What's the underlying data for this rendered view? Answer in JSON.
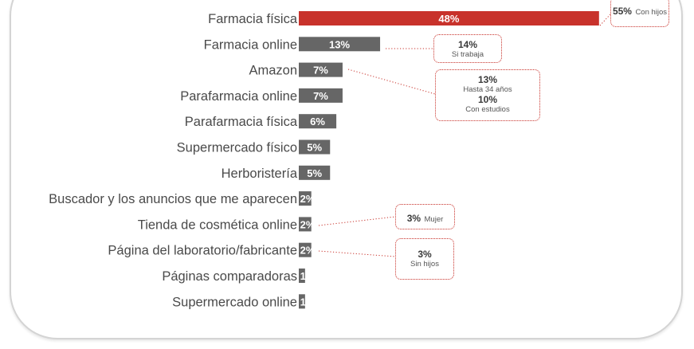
{
  "chart_data": {
    "type": "bar",
    "orientation": "horizontal",
    "categories": [
      "Farmacia física",
      "Farmacia online",
      "Amazon",
      "Parafarmacia online",
      "Parafarmacia física",
      "Supermercado físico",
      "Herboristería",
      "Buscador y los anuncios que me aparecen",
      "Tienda de cosmética online",
      "Página del laboratorio/fabricante",
      "Páginas comparadoras",
      "Supermercado online"
    ],
    "values": [
      48,
      13,
      7,
      7,
      6,
      5,
      5,
      2,
      2,
      2,
      1,
      1
    ],
    "value_labels": [
      "48%",
      "13%",
      "7%",
      "7%",
      "6%",
      "5%",
      "5%",
      "2%",
      "2%",
      "2%",
      "1%",
      "1%"
    ],
    "highlight_index": 0,
    "colors": {
      "highlight": "#c8322b",
      "bar": "#666666",
      "callout": "#c8322b"
    },
    "grid": false,
    "legend": "none"
  },
  "callouts": [
    {
      "category_index": 0,
      "entries": [
        {
          "pct": "55%",
          "label": "Con hijos"
        }
      ]
    },
    {
      "category_index": 1,
      "entries": [
        {
          "pct": "14%",
          "label": "Si trabaja"
        }
      ]
    },
    {
      "category_index": 2,
      "entries": [
        {
          "pct": "13%",
          "label": "Hasta 34 años"
        },
        {
          "pct": "10%",
          "label": "Con estudios"
        }
      ]
    },
    {
      "category_index": 8,
      "entries": [
        {
          "pct": "3%",
          "label": "Mujer"
        }
      ]
    },
    {
      "category_index": 9,
      "entries": [
        {
          "pct": "3%",
          "label": "Sin hijos"
        }
      ]
    }
  ]
}
